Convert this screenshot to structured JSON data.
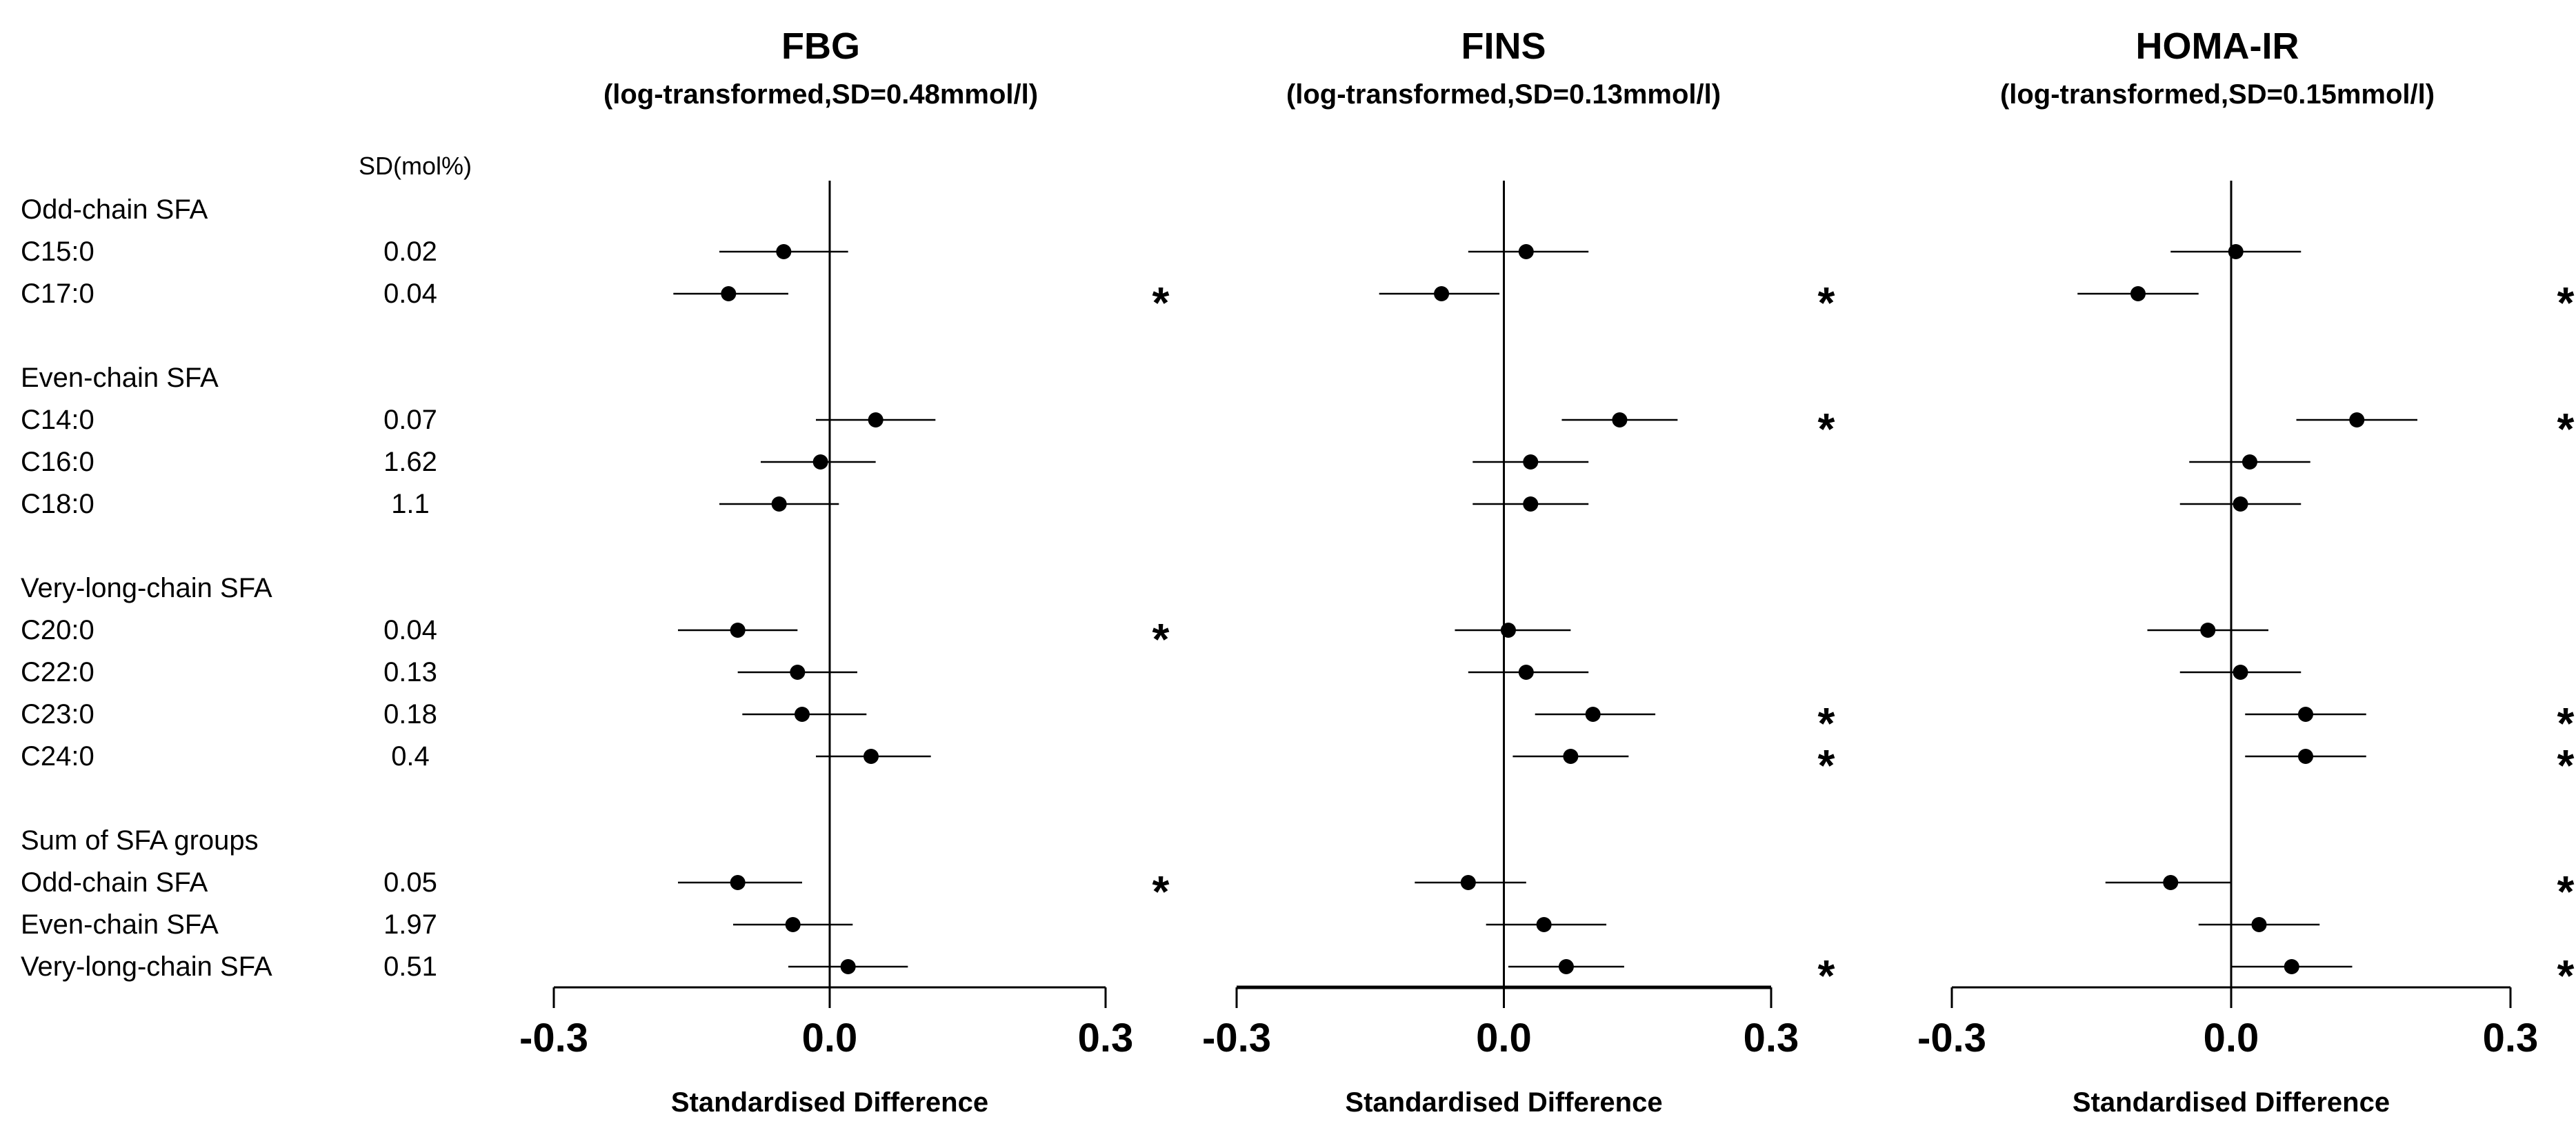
{
  "chart_data": {
    "type": "forest",
    "sd_header": "SD(mol%)",
    "rows": [
      {
        "kind": "group",
        "label": "Odd-chain SFA",
        "sd": ""
      },
      {
        "kind": "item",
        "label": "C15:0",
        "sd": "0.02"
      },
      {
        "kind": "item",
        "label": "C17:0",
        "sd": "0.04"
      },
      {
        "kind": "gap"
      },
      {
        "kind": "group",
        "label": "Even-chain SFA",
        "sd": ""
      },
      {
        "kind": "item",
        "label": "C14:0",
        "sd": "0.07"
      },
      {
        "kind": "item",
        "label": "C16:0",
        "sd": "1.62"
      },
      {
        "kind": "item",
        "label": "C18:0",
        "sd": "1.1"
      },
      {
        "kind": "gap"
      },
      {
        "kind": "group",
        "label": "Very-long-chain SFA",
        "sd": ""
      },
      {
        "kind": "item",
        "label": "C20:0",
        "sd": "0.04"
      },
      {
        "kind": "item",
        "label": "C22:0",
        "sd": "0.13"
      },
      {
        "kind": "item",
        "label": "C23:0",
        "sd": "0.18"
      },
      {
        "kind": "item",
        "label": "C24:0",
        "sd": "0.4"
      },
      {
        "kind": "gap"
      },
      {
        "kind": "group",
        "label": "Sum of SFA groups",
        "sd": ""
      },
      {
        "kind": "item",
        "label": "Odd-chain SFA",
        "sd": "0.05"
      },
      {
        "kind": "item",
        "label": "Even-chain SFA",
        "sd": "1.97"
      },
      {
        "kind": "item",
        "label": "Very-long-chain SFA",
        "sd": "0.51"
      }
    ],
    "panels": [
      {
        "title": "FBG",
        "subtitle": "(log-transformed,SD=0.48mmol/l)",
        "xlabel": "Standardised Difference",
        "xlim": [
          -0.3,
          0.3
        ],
        "ticks": [
          "-0.3",
          "0.0",
          "0.3"
        ],
        "tick_values": [
          -0.3,
          0.0,
          0.3
        ],
        "estimates": [
          -0.05,
          -0.11,
          0.05,
          -0.01,
          -0.055,
          -0.1,
          -0.035,
          -0.03,
          0.045,
          -0.1,
          -0.04,
          0.02
        ],
        "lower": [
          -0.12,
          -0.17,
          -0.015,
          -0.075,
          -0.12,
          -0.165,
          -0.1,
          -0.095,
          -0.015,
          -0.165,
          -0.105,
          -0.045
        ],
        "upper": [
          0.02,
          -0.045,
          0.115,
          0.05,
          0.01,
          -0.035,
          0.03,
          0.04,
          0.11,
          -0.03,
          0.025,
          0.085
        ],
        "significant": [
          false,
          true,
          false,
          false,
          false,
          true,
          false,
          false,
          false,
          true,
          false,
          false
        ],
        "star": "*"
      },
      {
        "title": "FINS",
        "subtitle": "(log-transformed,SD=0.13mmol/l)",
        "xlabel": "Standardised Difference",
        "xlim": [
          -0.3,
          0.3
        ],
        "ticks": [
          "-0.3",
          "0.0",
          "0.3"
        ],
        "tick_values": [
          -0.3,
          0.0,
          0.3
        ],
        "estimates": [
          0.025,
          -0.07,
          0.13,
          0.03,
          0.03,
          0.005,
          0.025,
          0.1,
          0.075,
          -0.04,
          0.045,
          0.07
        ],
        "lower": [
          -0.04,
          -0.14,
          0.065,
          -0.035,
          -0.035,
          -0.055,
          -0.04,
          0.035,
          0.01,
          -0.1,
          -0.02,
          0.005
        ],
        "upper": [
          0.095,
          -0.005,
          0.195,
          0.095,
          0.095,
          0.075,
          0.095,
          0.17,
          0.14,
          0.025,
          0.115,
          0.135
        ],
        "significant": [
          false,
          true,
          true,
          false,
          false,
          false,
          false,
          true,
          true,
          false,
          false,
          true
        ],
        "star": "*"
      },
      {
        "title": "HOMA-IR",
        "subtitle": "(log-transformed,SD=0.15mmol/l)",
        "xlabel": "Standardised Difference",
        "xlim": [
          -0.3,
          0.3
        ],
        "ticks": [
          "-0.3",
          "0.0",
          "0.3"
        ],
        "tick_values": [
          -0.3,
          0.0,
          0.3
        ],
        "estimates": [
          0.005,
          -0.1,
          0.135,
          0.02,
          0.01,
          -0.025,
          0.01,
          0.08,
          0.08,
          -0.065,
          0.03,
          0.065
        ],
        "lower": [
          -0.065,
          -0.165,
          0.07,
          -0.045,
          -0.055,
          -0.09,
          -0.055,
          0.015,
          0.015,
          -0.135,
          -0.035,
          0.0
        ],
        "upper": [
          0.075,
          -0.035,
          0.2,
          0.085,
          0.075,
          0.04,
          0.075,
          0.145,
          0.145,
          0.0,
          0.095,
          0.13
        ],
        "significant": [
          false,
          true,
          true,
          false,
          false,
          false,
          false,
          true,
          true,
          true,
          false,
          true
        ],
        "star": "*"
      }
    ]
  }
}
